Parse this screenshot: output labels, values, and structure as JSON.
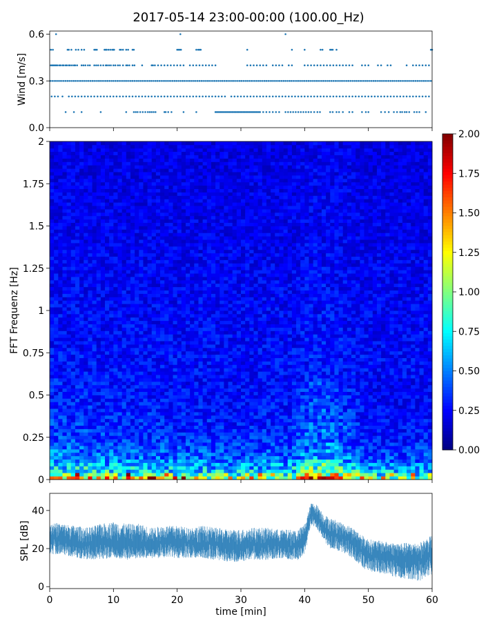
{
  "figure": {
    "title": "2017-05-14 23:00-00:00 (100.00_Hz)"
  },
  "chart_data": [
    {
      "type": "scatter",
      "panel": "wind",
      "ylabel": "Wind [m/s]",
      "xlim": [
        0,
        60
      ],
      "ylim": [
        0.0,
        0.62
      ],
      "yticks": [
        0.0,
        0.3,
        0.6
      ],
      "ytick_labels": [
        "0.0",
        "0.3",
        "0.6"
      ],
      "x_tick_labels_shown": false,
      "marker": "dot",
      "color": "#1f77b4",
      "levels": [
        0.1,
        0.2,
        0.3,
        0.4,
        0.5,
        0.6
      ],
      "series": [
        {
          "y": 0.6,
          "x": [
            1.0,
            20.5,
            37.0
          ]
        },
        {
          "y": 0.5,
          "x": [
            0.2,
            0.5,
            2.8,
            3.0,
            3.4,
            4.1,
            4.5,
            5.0,
            5.4,
            7.0,
            7.2,
            7.4,
            8.6,
            8.8,
            8.9,
            9.2,
            9.5,
            9.8,
            10.0,
            10.1,
            11.0,
            11.2,
            11.5,
            12.0,
            12.3,
            13.0,
            13.2,
            20.0,
            20.2,
            20.4,
            20.6,
            23.0,
            23.3,
            23.5,
            23.7,
            31.0,
            38.0,
            40.0,
            42.5,
            42.8,
            44.0,
            44.2,
            44.4,
            45.0,
            59.8,
            60.0
          ]
        },
        {
          "y": 0.4,
          "x": [
            0.2,
            0.4,
            0.6,
            0.8,
            1.0,
            1.2,
            1.5,
            1.7,
            2.0,
            2.2,
            2.5,
            2.7,
            3.0,
            3.2,
            3.5,
            3.8,
            4.0,
            4.3,
            5.0,
            5.3,
            5.6,
            6.0,
            6.3,
            7.0,
            7.3,
            7.6,
            8.0,
            8.4,
            8.8,
            9.0,
            9.3,
            9.6,
            10.0,
            10.3,
            10.7,
            11.0,
            11.5,
            12.0,
            12.2,
            12.5,
            13.0,
            13.3,
            14.5,
            16.0,
            16.2,
            16.5,
            17.0,
            17.5,
            18.0,
            18.5,
            19.0,
            19.5,
            20.0,
            20.5,
            21.0,
            22.0,
            22.5,
            23.0,
            23.5,
            24.0,
            24.5,
            25.0,
            25.5,
            26.0,
            31.0,
            31.5,
            32.0,
            32.5,
            33.0,
            33.5,
            34.0,
            35.0,
            35.5,
            36.0,
            36.5,
            37.5,
            38.0,
            40.0,
            40.5,
            41.0,
            41.5,
            42.0,
            42.5,
            43.0,
            43.5,
            44.0,
            44.5,
            45.0,
            45.5,
            46.0,
            46.5,
            47.0,
            47.5,
            49.0,
            49.5,
            50.0,
            51.5,
            52.0,
            53.0,
            53.5,
            56.0,
            57.0,
            57.5,
            58.0,
            58.5,
            59.0,
            59.5
          ]
        },
        {
          "y": 0.3,
          "x": [
            0.1,
            0.4,
            0.7,
            1.0,
            1.3,
            1.6,
            1.9,
            2.2,
            2.5,
            2.8,
            3.1,
            3.4,
            3.7,
            4.0,
            4.3,
            4.6,
            4.9,
            5.2,
            5.5,
            5.8,
            6.1,
            6.4,
            6.7,
            7.0,
            7.3,
            7.6,
            7.9,
            8.2,
            8.5,
            8.8,
            9.1,
            9.4,
            9.7,
            10.0,
            10.3,
            10.6,
            10.9,
            11.2,
            11.5,
            11.8,
            12.1,
            12.4,
            12.7,
            13.0,
            13.3,
            13.6,
            13.9,
            14.2,
            14.5,
            14.8,
            15.1,
            15.4,
            15.7,
            16.0,
            16.3,
            16.6,
            16.9,
            17.2,
            17.5,
            17.8,
            18.1,
            18.4,
            18.7,
            19.0,
            19.3,
            19.6,
            19.9,
            20.2,
            20.5,
            20.8,
            21.1,
            21.4,
            21.7,
            22.0,
            22.3,
            22.6,
            22.9,
            23.2,
            23.5,
            23.8,
            24.1,
            24.4,
            24.7,
            25.0,
            25.3,
            25.6,
            25.9,
            26.2,
            26.5,
            26.8,
            27.1,
            27.4,
            27.7,
            28.0,
            28.3,
            28.6,
            28.9,
            29.2,
            29.5,
            29.8,
            30.1,
            30.4,
            30.7,
            31.0,
            31.3,
            31.6,
            31.9,
            32.2,
            32.5,
            32.8,
            33.1,
            33.4,
            33.7,
            34.0,
            34.3,
            34.6,
            34.9,
            35.2,
            35.5,
            35.8,
            36.1,
            36.4,
            36.7,
            37.0,
            37.3,
            37.6,
            37.9,
            38.2,
            38.5,
            38.8,
            39.1,
            39.4,
            39.7,
            40.0,
            40.3,
            40.6,
            40.9,
            41.2,
            41.5,
            41.8,
            42.1,
            42.4,
            42.7,
            43.0,
            43.3,
            43.6,
            43.9,
            44.2,
            44.5,
            44.8,
            45.1,
            45.4,
            45.7,
            46.0,
            46.3,
            46.6,
            46.9,
            47.2,
            47.5,
            47.8,
            48.1,
            48.4,
            48.7,
            49.0,
            49.3,
            49.6,
            49.9,
            50.2,
            50.5,
            50.8,
            51.1,
            51.4,
            51.7,
            52.0,
            52.3,
            52.6,
            52.9,
            53.2,
            53.5,
            53.8,
            54.1,
            54.4,
            54.7,
            55.0,
            55.3,
            55.6,
            55.9,
            56.2,
            56.5,
            56.8,
            57.1,
            57.4,
            57.7,
            58.0,
            58.3,
            58.6,
            58.9,
            59.2,
            59.5,
            59.8
          ]
        },
        {
          "y": 0.2,
          "x": [
            0.3,
            0.8,
            1.3,
            2.0,
            3.0,
            3.5,
            4.0,
            4.5,
            5.0,
            5.5,
            6.0,
            6.5,
            7.0,
            7.5,
            8.0,
            8.5,
            9.0,
            9.5,
            10.0,
            10.5,
            11.0,
            11.5,
            12.0,
            12.5,
            13.0,
            13.5,
            14.0,
            14.5,
            15.0,
            15.5,
            16.0,
            16.5,
            17.0,
            17.5,
            18.0,
            18.5,
            19.0,
            19.5,
            20.0,
            20.5,
            21.0,
            21.5,
            22.0,
            22.5,
            23.0,
            23.5,
            24.0,
            24.5,
            25.0,
            25.5,
            26.0,
            26.5,
            27.0,
            27.5,
            28.5,
            29.0,
            29.5,
            30.0,
            30.5,
            31.0,
            31.5,
            32.0,
            32.5,
            33.0,
            33.5,
            34.0,
            34.5,
            35.0,
            35.5,
            36.0,
            36.5,
            37.0,
            37.5,
            38.0,
            38.5,
            39.0,
            39.5,
            40.0,
            40.5,
            41.0,
            41.5,
            42.0,
            42.5,
            43.0,
            43.5,
            44.0,
            44.5,
            45.0,
            45.5,
            46.0,
            46.5,
            47.0,
            47.5,
            48.0,
            48.5,
            49.0,
            49.5,
            50.0,
            50.5,
            51.0,
            51.5,
            52.0,
            52.5,
            53.0,
            53.5,
            54.0,
            54.5,
            55.0,
            55.5,
            56.0,
            56.5,
            57.0,
            57.5,
            58.0,
            58.5,
            59.0,
            59.5
          ]
        },
        {
          "y": 0.1,
          "x": [
            2.5,
            3.8,
            5.0,
            8.0,
            12.0,
            13.2,
            13.5,
            13.8,
            14.2,
            14.6,
            15.0,
            15.4,
            15.7,
            16.0,
            16.3,
            16.6,
            18.0,
            18.2,
            18.6,
            19.1,
            21.0,
            23.0,
            26.0,
            26.2,
            26.4,
            26.6,
            26.8,
            27.0,
            27.2,
            27.4,
            27.6,
            27.8,
            28.0,
            28.2,
            28.4,
            28.6,
            28.8,
            29.0,
            29.2,
            29.4,
            29.6,
            29.8,
            30.0,
            30.2,
            30.4,
            30.6,
            30.8,
            31.0,
            31.2,
            31.4,
            31.6,
            31.8,
            32.0,
            32.2,
            32.4,
            32.6,
            32.8,
            33.0,
            33.5,
            34.0,
            34.5,
            35.0,
            35.5,
            36.0,
            37.0,
            37.4,
            37.8,
            38.2,
            38.6,
            39.0,
            39.4,
            39.8,
            40.2,
            40.6,
            41.0,
            41.5,
            42.0,
            42.4,
            44.0,
            44.4,
            45.0,
            45.4,
            46.0,
            47.0,
            47.5,
            49.0,
            49.6,
            50.0,
            52.0,
            52.6,
            53.2,
            54.0,
            54.5,
            55.0,
            55.3,
            55.7,
            56.0,
            56.4,
            57.2,
            57.6,
            58.0,
            59.0
          ]
        }
      ]
    },
    {
      "type": "heatmap",
      "panel": "spectrogram",
      "ylabel": "FFT Frequenz [Hz]",
      "xlim": [
        0,
        60
      ],
      "ylim": [
        0,
        2
      ],
      "yticks": [
        0,
        0.25,
        0.5,
        0.75,
        1,
        1.25,
        1.5,
        1.75,
        2
      ],
      "ytick_labels": [
        "0",
        "0.25",
        "0.5",
        "0.75",
        "1",
        "1.25",
        "1.5",
        "1.75",
        "2"
      ],
      "x_tick_labels_shown": false,
      "colormap": "jet",
      "vmin": 0.0,
      "vmax": 2.0,
      "colorbar_ticks": [
        0.0,
        0.25,
        0.5,
        0.75,
        1.0,
        1.25,
        1.5,
        1.75,
        2.0
      ],
      "colorbar_tick_labels": [
        "0.00",
        "0.25",
        "0.50",
        "0.75",
        "1.00",
        "1.25",
        "1.50",
        "1.75",
        "2.00"
      ],
      "row_profile": {
        "freq": [
          0.0,
          0.02,
          0.05,
          0.1,
          0.15,
          0.25,
          0.5,
          1.0,
          1.5,
          2.0
        ],
        "typical_value": [
          1.5,
          1.0,
          0.75,
          0.55,
          0.45,
          0.35,
          0.28,
          0.25,
          0.22,
          0.2
        ]
      },
      "time_profile": {
        "time": [
          0,
          5,
          10,
          20,
          30,
          38,
          41,
          43,
          46,
          50,
          55,
          60
        ],
        "relative_intensity": [
          1.1,
          1.05,
          1.0,
          0.95,
          0.9,
          0.95,
          1.3,
          1.35,
          1.15,
          0.85,
          0.8,
          0.85
        ]
      }
    },
    {
      "type": "line",
      "panel": "spl",
      "xlabel": "time [min]",
      "ylabel": "SPL [dB]",
      "xlim": [
        0,
        60
      ],
      "ylim": [
        -1,
        49
      ],
      "xticks": [
        0,
        10,
        20,
        30,
        40,
        50,
        60
      ],
      "xtick_labels": [
        "0",
        "10",
        "20",
        "30",
        "40",
        "50",
        "60"
      ],
      "yticks": [
        0,
        20,
        40
      ],
      "ytick_labels": [
        "0",
        "20",
        "40"
      ],
      "color": "#1f77b4",
      "series": [
        {
          "x": [
            0,
            2,
            4,
            6,
            8,
            10,
            12,
            14,
            16,
            18,
            20,
            22,
            24,
            26,
            28,
            30,
            32,
            34,
            36,
            38,
            39,
            40,
            41,
            42,
            43,
            44,
            45,
            46,
            47,
            48,
            49,
            50,
            52,
            54,
            56,
            58,
            60
          ],
          "mean": [
            25,
            25,
            23,
            22,
            23,
            24,
            23,
            23,
            22,
            23,
            23,
            23,
            23,
            22,
            21,
            21,
            22,
            22,
            22,
            21,
            21,
            24,
            39,
            37,
            31,
            28,
            27,
            26,
            25,
            22,
            19,
            17,
            16,
            15,
            14,
            14,
            18
          ],
          "low": [
            17,
            17,
            15,
            14,
            14,
            15,
            14,
            15,
            15,
            15,
            15,
            15,
            15,
            14,
            13,
            13,
            14,
            14,
            15,
            14,
            14,
            17,
            32,
            30,
            24,
            20,
            19,
            18,
            16,
            13,
            10,
            8,
            7,
            5,
            4,
            3,
            6
          ],
          "high": [
            34,
            33,
            32,
            31,
            33,
            34,
            33,
            33,
            31,
            32,
            32,
            31,
            32,
            31,
            30,
            30,
            31,
            31,
            30,
            30,
            30,
            33,
            44,
            43,
            38,
            36,
            35,
            33,
            32,
            30,
            27,
            25,
            24,
            23,
            23,
            23,
            27
          ]
        }
      ]
    }
  ]
}
